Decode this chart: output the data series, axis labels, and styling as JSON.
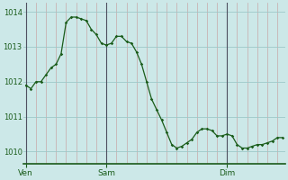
{
  "background_color": "#cce8e8",
  "plot_bg_color": "#cce8e8",
  "line_color": "#1a5c1a",
  "marker_color": "#1a5c1a",
  "major_hgrid_color": "#9ec8c8",
  "minor_vgrid_color": "#c8a8a8",
  "day_vline_color": "#505060",
  "ylabel_color": "#1a5c1a",
  "xlabel_color": "#1a5c1a",
  "border_color": "#1a5a1a",
  "ylim": [
    1009.65,
    1014.25
  ],
  "yticks": [
    1010,
    1011,
    1012,
    1013,
    1014
  ],
  "x_labels": [
    "Ven",
    "Sam",
    "Dim"
  ],
  "data_x": [
    0,
    1,
    2,
    3,
    4,
    5,
    6,
    7,
    8,
    9,
    10,
    11,
    12,
    13,
    14,
    15,
    16,
    17,
    18,
    19,
    20,
    21,
    22,
    23,
    24,
    25,
    26,
    27,
    28,
    29,
    30,
    31,
    32,
    33,
    34,
    35,
    36,
    37,
    38,
    39,
    40,
    41,
    42,
    43,
    44,
    45,
    46,
    47,
    48,
    49,
    50,
    51
  ],
  "data_y": [
    1011.9,
    1011.8,
    1012.0,
    1012.0,
    1012.2,
    1012.4,
    1012.5,
    1012.8,
    1013.7,
    1013.85,
    1013.85,
    1013.8,
    1013.75,
    1013.5,
    1013.35,
    1013.1,
    1013.05,
    1013.1,
    1013.3,
    1013.3,
    1013.15,
    1013.1,
    1012.85,
    1012.5,
    1012.0,
    1011.5,
    1011.2,
    1010.9,
    1010.55,
    1010.2,
    1010.1,
    1010.15,
    1010.25,
    1010.35,
    1010.55,
    1010.65,
    1010.65,
    1010.6,
    1010.45,
    1010.45,
    1010.5,
    1010.45,
    1010.2,
    1010.1,
    1010.1,
    1010.15,
    1010.2,
    1010.2,
    1010.25,
    1010.3,
    1010.4,
    1010.4
  ],
  "n_points": 52,
  "day_tick_indices": [
    0,
    16,
    40
  ],
  "minor_grid_indices": [
    2,
    4,
    6,
    8,
    10,
    12,
    14,
    18,
    20,
    22,
    24,
    26,
    28,
    30,
    32,
    34,
    36,
    38,
    42,
    44,
    46,
    48,
    50
  ]
}
